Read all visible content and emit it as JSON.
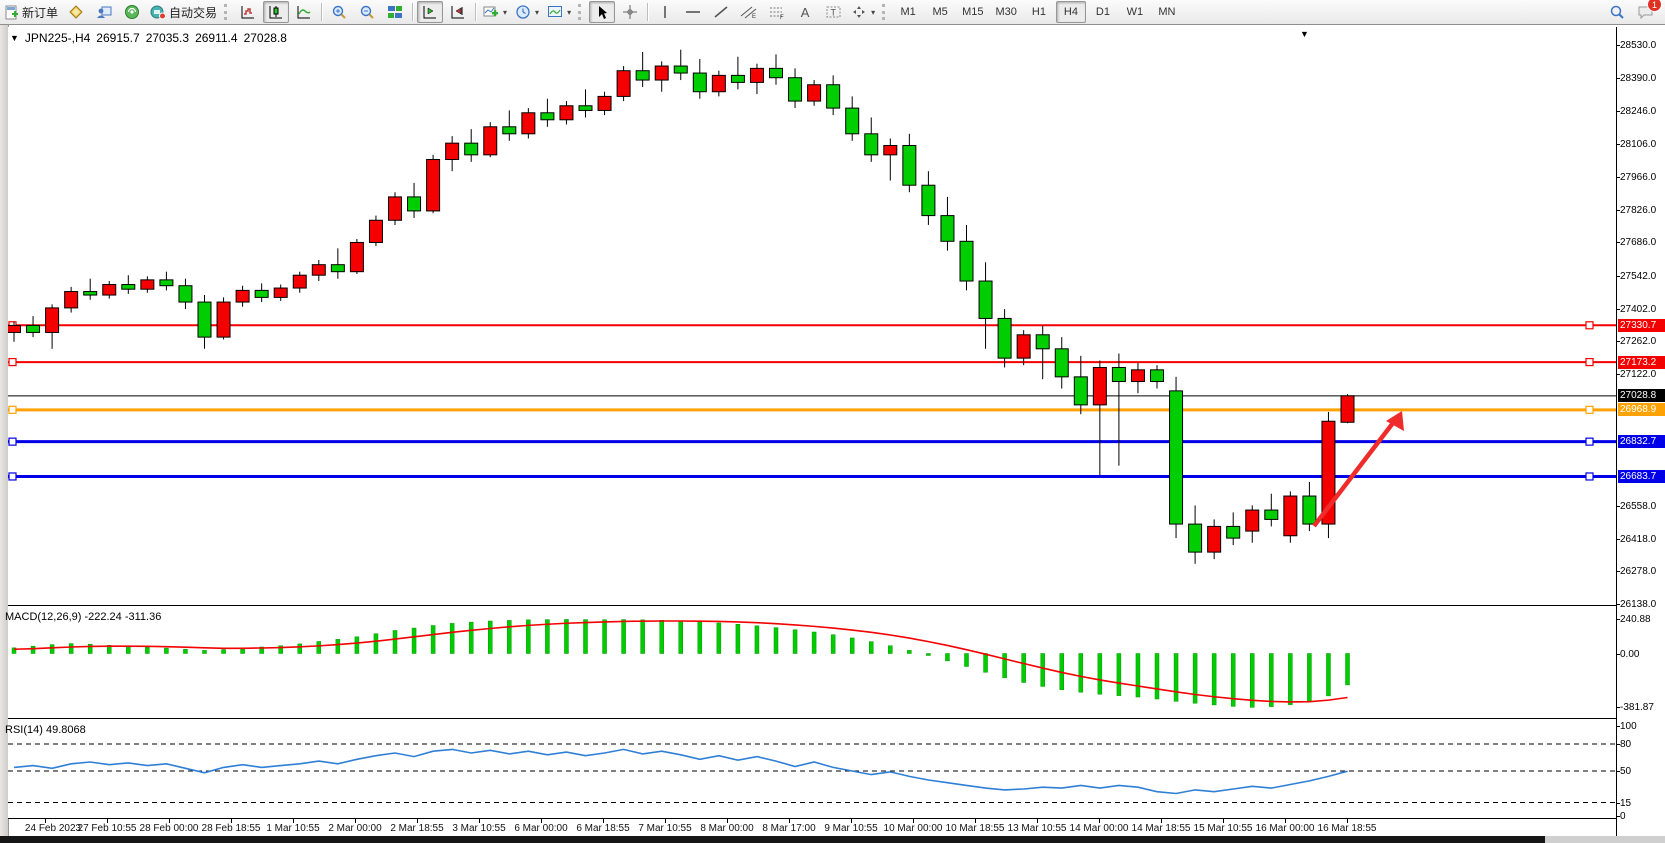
{
  "toolbar": {
    "new_order": "新订单",
    "auto_trading": "自动交易",
    "timeframes": [
      "M1",
      "M5",
      "M15",
      "M30",
      "H1",
      "H4",
      "D1",
      "W1",
      "MN"
    ],
    "active_timeframe": "H4",
    "badge_count": "1",
    "text_tool_label": "A"
  },
  "chart": {
    "symbol_period": "JPN225-,H4",
    "open": "26915.7",
    "high": "27035.3",
    "low": "26911.4",
    "close": "27028.8",
    "collapse_glyph": "▼",
    "shift_glyph": "▼"
  },
  "macd_panel": {
    "label": "MACD(12,26,9) -222.24 -311.36"
  },
  "rsi_panel": {
    "label": "RSI(14) 49.8068"
  },
  "chart_data": {
    "type": "candlestick",
    "symbol": "JPN225-",
    "period": "H4",
    "bull_color": "#f40000",
    "bear_color": "#00ce00",
    "price_ticks": [
      "28530.0",
      "28390.0",
      "28246.0",
      "28106.0",
      "27966.0",
      "27826.0",
      "27686.0",
      "27542.0",
      "27402.0",
      "27262.0",
      "27122.0",
      "26558.0",
      "26418.0",
      "26278.0",
      "26138.0"
    ],
    "price_range": [
      26138.0,
      28530.0
    ],
    "time_labels": [
      "24 Feb 2023",
      "27 Feb 10:55",
      "28 Feb 00:00",
      "28 Feb 18:55",
      "1 Mar 10:55",
      "2 Mar 00:00",
      "2 Mar 18:55",
      "3 Mar 10:55",
      "6 Mar 00:00",
      "6 Mar 18:55",
      "7 Mar 10:55",
      "8 Mar 00:00",
      "8 Mar 17:00",
      "9 Mar 10:55",
      "10 Mar 00:00",
      "10 Mar 18:55",
      "13 Mar 10:55",
      "14 Mar 00:00",
      "14 Mar 18:55",
      "15 Mar 10:55",
      "16 Mar 00:00",
      "16 Mar 18:55"
    ],
    "hlines": [
      {
        "label": "27330.7",
        "value": 27330.7,
        "color": "#f40000",
        "width": 2,
        "handles": true
      },
      {
        "label": "27173.2",
        "value": 27173.2,
        "color": "#f40000",
        "width": 2,
        "handles": true
      },
      {
        "label": "27028.8",
        "value": 27028.8,
        "color": "#000000",
        "width": 1,
        "handles": false
      },
      {
        "label": "26968.9",
        "value": 26968.9,
        "color": "#ffa200",
        "width": 3,
        "handles": true
      },
      {
        "label": "26832.7",
        "value": 26832.7,
        "color": "#0000e8",
        "width": 3,
        "handles": true
      },
      {
        "label": "26683.7",
        "value": 26683.7,
        "color": "#0000e8",
        "width": 3,
        "handles": true
      }
    ],
    "arrow_annotation": {
      "color": "#ef2b2b",
      "from_price": 26460,
      "to_price": 26960,
      "note": "up-trend arrow right of last candle"
    },
    "candles": [
      [
        27300,
        27345,
        27260,
        27330
      ],
      [
        27330,
        27370,
        27280,
        27300
      ],
      [
        27300,
        27420,
        27230,
        27405
      ],
      [
        27405,
        27495,
        27385,
        27475
      ],
      [
        27475,
        27530,
        27440,
        27460
      ],
      [
        27460,
        27520,
        27445,
        27505
      ],
      [
        27505,
        27545,
        27465,
        27485
      ],
      [
        27485,
        27540,
        27470,
        27525
      ],
      [
        27525,
        27560,
        27480,
        27500
      ],
      [
        27500,
        27530,
        27400,
        27430
      ],
      [
        27430,
        27460,
        27230,
        27280
      ],
      [
        27280,
        27450,
        27270,
        27430
      ],
      [
        27430,
        27500,
        27410,
        27480
      ],
      [
        27480,
        27510,
        27430,
        27450
      ],
      [
        27450,
        27505,
        27435,
        27490
      ],
      [
        27490,
        27560,
        27470,
        27545
      ],
      [
        27545,
        27610,
        27520,
        27590
      ],
      [
        27590,
        27660,
        27530,
        27560
      ],
      [
        27560,
        27700,
        27550,
        27685
      ],
      [
        27685,
        27800,
        27670,
        27780
      ],
      [
        27780,
        27900,
        27760,
        27880
      ],
      [
        27880,
        27940,
        27790,
        27820
      ],
      [
        27820,
        28060,
        27810,
        28040
      ],
      [
        28040,
        28140,
        27990,
        28110
      ],
      [
        28110,
        28170,
        28030,
        28060
      ],
      [
        28060,
        28200,
        28050,
        28180
      ],
      [
        28180,
        28250,
        28120,
        28150
      ],
      [
        28150,
        28260,
        28130,
        28240
      ],
      [
        28240,
        28300,
        28180,
        28210
      ],
      [
        28210,
        28290,
        28190,
        28270
      ],
      [
        28270,
        28340,
        28220,
        28250
      ],
      [
        28250,
        28330,
        28230,
        28310
      ],
      [
        28310,
        28440,
        28290,
        28420
      ],
      [
        28420,
        28500,
        28350,
        28380
      ],
      [
        28380,
        28460,
        28330,
        28440
      ],
      [
        28440,
        28510,
        28380,
        28410
      ],
      [
        28410,
        28470,
        28300,
        28330
      ],
      [
        28330,
        28420,
        28310,
        28400
      ],
      [
        28400,
        28480,
        28340,
        28370
      ],
      [
        28370,
        28450,
        28320,
        28430
      ],
      [
        28430,
        28490,
        28360,
        28390
      ],
      [
        28390,
        28430,
        28260,
        28290
      ],
      [
        28290,
        28380,
        28270,
        28360
      ],
      [
        28360,
        28400,
        28230,
        28260
      ],
      [
        28260,
        28310,
        28120,
        28150
      ],
      [
        28150,
        28220,
        28030,
        28060
      ],
      [
        28060,
        28130,
        27950,
        28100
      ],
      [
        28100,
        28150,
        27900,
        27930
      ],
      [
        27930,
        27990,
        27760,
        27800
      ],
      [
        27800,
        27880,
        27650,
        27690
      ],
      [
        27690,
        27760,
        27480,
        27520
      ],
      [
        27520,
        27600,
        27230,
        27360
      ],
      [
        27360,
        27400,
        27150,
        27190
      ],
      [
        27190,
        27310,
        27160,
        27290
      ],
      [
        27290,
        27330,
        27100,
        27230
      ],
      [
        27230,
        27280,
        27060,
        27110
      ],
      [
        27110,
        27200,
        26950,
        26990
      ],
      [
        26990,
        27180,
        26690,
        27150
      ],
      [
        27150,
        27210,
        26730,
        27090
      ],
      [
        27090,
        27170,
        27040,
        27140
      ],
      [
        27140,
        27160,
        27060,
        27090
      ],
      [
        27050,
        27110,
        26420,
        26480
      ],
      [
        26480,
        26560,
        26310,
        26360
      ],
      [
        26360,
        26500,
        26330,
        26470
      ],
      [
        26470,
        26530,
        26390,
        26420
      ],
      [
        26450,
        26560,
        26400,
        26540
      ],
      [
        26540,
        26610,
        26470,
        26500
      ],
      [
        26430,
        26620,
        26400,
        26600
      ],
      [
        26600,
        26660,
        26450,
        26480
      ],
      [
        26480,
        26960,
        26420,
        26920
      ],
      [
        26915.7,
        27035.3,
        26911.4,
        27028.8
      ]
    ],
    "macd": {
      "params": "12,26,9",
      "last_values": [
        -222.24,
        -311.36
      ],
      "axis_ticks": [
        "240.88",
        "0.00",
        "-381.87"
      ],
      "range": [
        -381.87,
        240.88
      ],
      "histogram_color": "#00cc00",
      "signal_color": "#f40000",
      "histogram": [
        40,
        52,
        63,
        70,
        66,
        58,
        50,
        44,
        38,
        30,
        22,
        28,
        38,
        46,
        55,
        68,
        85,
        100,
        118,
        140,
        163,
        180,
        198,
        213,
        222,
        230,
        234,
        238,
        240,
        241,
        240,
        239,
        240,
        238,
        235,
        230,
        224,
        216,
        207,
        196,
        183,
        168,
        152,
        133,
        110,
        84,
        55,
        22,
        -14,
        -52,
        -92,
        -133,
        -172,
        -205,
        -233,
        -256,
        -274,
        -288,
        -298,
        -308,
        -322,
        -338,
        -352,
        -364,
        -374,
        -381,
        -376,
        -362,
        -338,
        -300,
        -222.24
      ],
      "signal": [
        30,
        34,
        40,
        46,
        50,
        52,
        52,
        51,
        48,
        45,
        40,
        37,
        37,
        39,
        42,
        47,
        54,
        63,
        74,
        87,
        102,
        118,
        134,
        150,
        164,
        177,
        189,
        199,
        207,
        214,
        219,
        223,
        227,
        229,
        230,
        230,
        229,
        227,
        223,
        218,
        211,
        202,
        192,
        180,
        166,
        150,
        131,
        109,
        84,
        57,
        27,
        -5,
        -38,
        -71,
        -103,
        -134,
        -162,
        -187,
        -209,
        -230,
        -251,
        -271,
        -290,
        -306,
        -320,
        -331,
        -339,
        -343,
        -341,
        -330,
        -311.36
      ]
    },
    "rsi": {
      "period": 14,
      "last_value": 49.8068,
      "axis_ticks": [
        "100",
        "80",
        "50",
        "15",
        "0"
      ],
      "levels": [
        80,
        50,
        15
      ],
      "range": [
        0,
        100
      ],
      "line_color": "#2f7fd6",
      "values": [
        54,
        56,
        53,
        58,
        60,
        57,
        59,
        56,
        58,
        53,
        48,
        54,
        57,
        54,
        56,
        58,
        61,
        58,
        63,
        67,
        70,
        66,
        72,
        74,
        70,
        73,
        69,
        72,
        68,
        71,
        67,
        70,
        74,
        69,
        72,
        68,
        63,
        67,
        62,
        66,
        61,
        55,
        60,
        54,
        50,
        46,
        49,
        44,
        40,
        37,
        34,
        31,
        29,
        30,
        32,
        31,
        34,
        31,
        34,
        32,
        27,
        25,
        29,
        27,
        30,
        33,
        31,
        35,
        39,
        44,
        49.8
      ]
    }
  }
}
